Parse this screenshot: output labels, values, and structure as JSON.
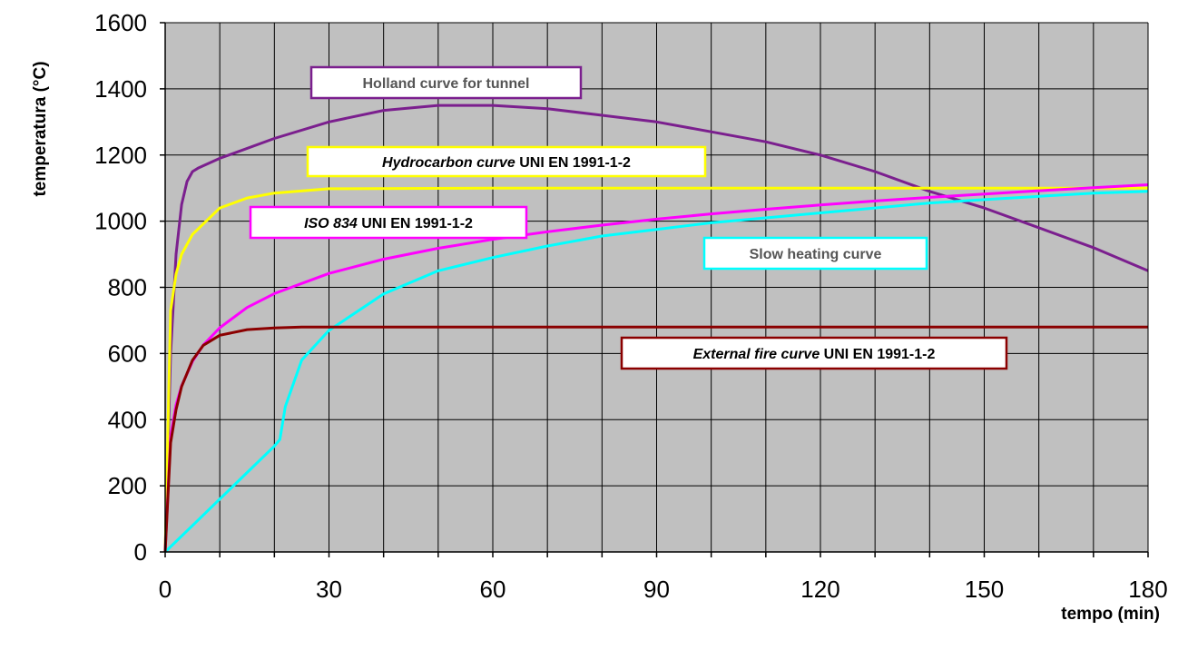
{
  "chart_data": {
    "type": "line",
    "xlabel": "tempo (min)",
    "ylabel": "temperatura (°C)",
    "xlim": [
      0,
      180
    ],
    "ylim": [
      0,
      1600
    ],
    "xticks": [
      0,
      30,
      60,
      90,
      120,
      150,
      180
    ],
    "yticks": [
      0,
      200,
      400,
      600,
      800,
      1000,
      1200,
      1400,
      1600
    ],
    "grid": true,
    "plot_background": "#c0c0c0",
    "series": [
      {
        "key": "holland",
        "color": "#7b1f8e",
        "label": {
          "italic": "",
          "regular": "Holland curve for tunnel"
        },
        "x": [
          0,
          1,
          2,
          3,
          4,
          5,
          6,
          10,
          20,
          30,
          40,
          50,
          60,
          70,
          80,
          90,
          100,
          110,
          120,
          130,
          140,
          150,
          160,
          170,
          180
        ],
        "y": [
          0,
          600,
          900,
          1050,
          1120,
          1150,
          1160,
          1190,
          1250,
          1300,
          1335,
          1350,
          1350,
          1340,
          1320,
          1300,
          1270,
          1240,
          1200,
          1150,
          1090,
          1040,
          980,
          920,
          850
        ]
      },
      {
        "key": "hydrocarbon",
        "color": "#ffff00",
        "label": {
          "italic": "Hydrocarbon curve",
          "regular": " UNI EN 1991-1-2"
        },
        "x": [
          0,
          1,
          2,
          3,
          5,
          10,
          15,
          20,
          30,
          60,
          90,
          120,
          150,
          180
        ],
        "y": [
          0,
          730,
          840,
          900,
          960,
          1040,
          1070,
          1085,
          1098,
          1100,
          1100,
          1100,
          1100,
          1100
        ]
      },
      {
        "key": "iso834",
        "color": "#ff00ff",
        "label": {
          "italic": "ISO 834",
          "regular": " UNI EN 1991-1-2"
        },
        "x": [
          0,
          1,
          2,
          3,
          5,
          7,
          10,
          15,
          20,
          30,
          40,
          50,
          60,
          70,
          80,
          90,
          100,
          110,
          120,
          130,
          140,
          150,
          160,
          170,
          180
        ],
        "y": [
          0,
          349,
          445,
          502,
          576,
          626,
          678,
          739,
          781,
          842,
          885,
          918,
          945,
          968,
          988,
          1006,
          1022,
          1036,
          1049,
          1061,
          1072,
          1082,
          1092,
          1101,
          1110
        ]
      },
      {
        "key": "slow",
        "color": "#00ffff",
        "label": {
          "italic": "",
          "regular": "Slow heating curve"
        },
        "x": [
          0,
          5,
          10,
          15,
          20,
          21,
          22,
          25,
          30,
          40,
          50,
          60,
          70,
          80,
          90,
          100,
          110,
          120,
          130,
          140,
          150,
          160,
          170,
          180
        ],
        "y": [
          0,
          80,
          160,
          240,
          320,
          340,
          440,
          580,
          670,
          780,
          850,
          890,
          925,
          955,
          975,
          995,
          1010,
          1025,
          1040,
          1055,
          1065,
          1075,
          1085,
          1090
        ]
      },
      {
        "key": "external",
        "color": "#8b0000",
        "label": {
          "italic": "External fire curve",
          "regular": " UNI EN 1991-1-2"
        },
        "x": [
          0,
          1,
          2,
          3,
          5,
          7,
          10,
          15,
          20,
          25,
          30,
          60,
          90,
          120,
          150,
          180
        ],
        "y": [
          0,
          330,
          430,
          500,
          580,
          625,
          655,
          672,
          677,
          680,
          680,
          680,
          680,
          680,
          680,
          680
        ]
      }
    ]
  }
}
